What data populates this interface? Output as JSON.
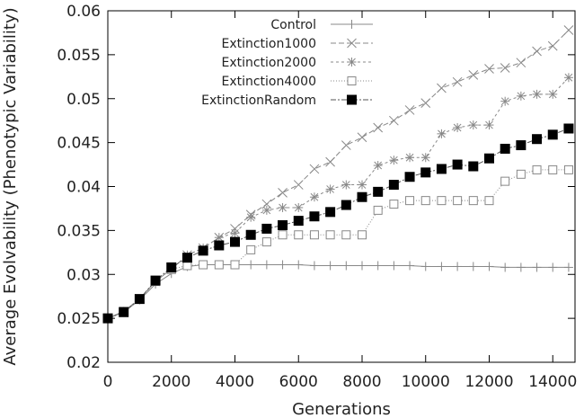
{
  "chart_data": {
    "type": "line",
    "xlabel": "Generations",
    "ylabel": "Average Evolvability (Phenotypic Variability)",
    "xlim": [
      0,
      14700
    ],
    "ylim": [
      0.02,
      0.06
    ],
    "x_ticks": [
      "0",
      "2000",
      "4000",
      "6000",
      "8000",
      "10000",
      "12000",
      "14000"
    ],
    "y_ticks": [
      "0.02",
      "0.025",
      "0.03",
      "0.035",
      "0.04",
      "0.045",
      "0.05",
      "0.055",
      "0.06"
    ],
    "grid": false,
    "legend_position": "top-left",
    "x": [
      0,
      500,
      1000,
      1500,
      2000,
      2500,
      3000,
      3500,
      4000,
      4500,
      5000,
      5500,
      6000,
      6500,
      7000,
      7500,
      8000,
      8500,
      9000,
      9500,
      10000,
      10500,
      11000,
      11500,
      12000,
      12500,
      13000,
      13500,
      14000,
      14500
    ],
    "series": [
      {
        "name": "Control",
        "marker": "plus",
        "dash": "none",
        "color": "#888888",
        "values": [
          0.025,
          0.0257,
          0.0271,
          0.0289,
          0.0301,
          0.0309,
          0.0311,
          0.0311,
          0.0311,
          0.0311,
          0.0311,
          0.0311,
          0.0311,
          0.031,
          0.031,
          0.031,
          0.031,
          0.031,
          0.031,
          0.031,
          0.0309,
          0.0309,
          0.0309,
          0.0309,
          0.0309,
          0.0308,
          0.0308,
          0.0308,
          0.0308,
          0.0308
        ]
      },
      {
        "name": "Extinction1000",
        "marker": "x",
        "dash": "6,3",
        "color": "#888888",
        "values": [
          0.025,
          0.0258,
          0.0272,
          0.0292,
          0.0306,
          0.0322,
          0.033,
          0.0342,
          0.0352,
          0.0368,
          0.038,
          0.0393,
          0.0402,
          0.042,
          0.0428,
          0.0447,
          0.0456,
          0.0467,
          0.0475,
          0.0487,
          0.0495,
          0.0512,
          0.0519,
          0.0527,
          0.0534,
          0.0535,
          0.0541,
          0.0554,
          0.056,
          0.0578
        ]
      },
      {
        "name": "Extinction2000",
        "marker": "star",
        "dash": "3,3",
        "color": "#888888",
        "values": [
          0.025,
          0.0258,
          0.0272,
          0.0292,
          0.0306,
          0.0322,
          0.033,
          0.0342,
          0.0347,
          0.0365,
          0.0373,
          0.0376,
          0.0376,
          0.0388,
          0.0397,
          0.0402,
          0.0402,
          0.0424,
          0.043,
          0.0433,
          0.0433,
          0.046,
          0.0467,
          0.047,
          0.047,
          0.0497,
          0.0503,
          0.0505,
          0.0505,
          0.0524
        ]
      },
      {
        "name": "Extinction4000",
        "marker": "square-open",
        "dash": "1,2",
        "color": "#888888",
        "values": [
          0.025,
          0.0258,
          0.0272,
          0.0292,
          0.0306,
          0.031,
          0.0311,
          0.0311,
          0.0311,
          0.0328,
          0.0337,
          0.0345,
          0.0345,
          0.0345,
          0.0345,
          0.0345,
          0.0345,
          0.0373,
          0.038,
          0.0384,
          0.0384,
          0.0384,
          0.0384,
          0.0384,
          0.0384,
          0.0406,
          0.0414,
          0.0419,
          0.0419,
          0.0419
        ]
      },
      {
        "name": "ExtinctionRandom",
        "marker": "square-filled",
        "dash": "6,2,2,2",
        "color": "#555555",
        "values": [
          0.025,
          0.0257,
          0.0272,
          0.0293,
          0.0308,
          0.0319,
          0.0327,
          0.0333,
          0.0337,
          0.0345,
          0.0352,
          0.0356,
          0.0361,
          0.0366,
          0.0371,
          0.0379,
          0.0388,
          0.0394,
          0.0402,
          0.0411,
          0.0416,
          0.042,
          0.0425,
          0.0423,
          0.0432,
          0.0443,
          0.0447,
          0.0454,
          0.0459,
          0.0466
        ]
      }
    ]
  }
}
